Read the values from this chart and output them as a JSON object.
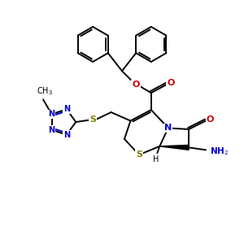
{
  "bg_color": "#ffffff",
  "bond_color": "#000000",
  "n_color": "#0000cc",
  "o_color": "#cc0000",
  "s_color": "#808000",
  "text_color": "#000000",
  "figsize": [
    3.0,
    3.0
  ],
  "dpi": 100,
  "xlim": [
    0,
    10
  ],
  "ylim": [
    0,
    10
  ]
}
